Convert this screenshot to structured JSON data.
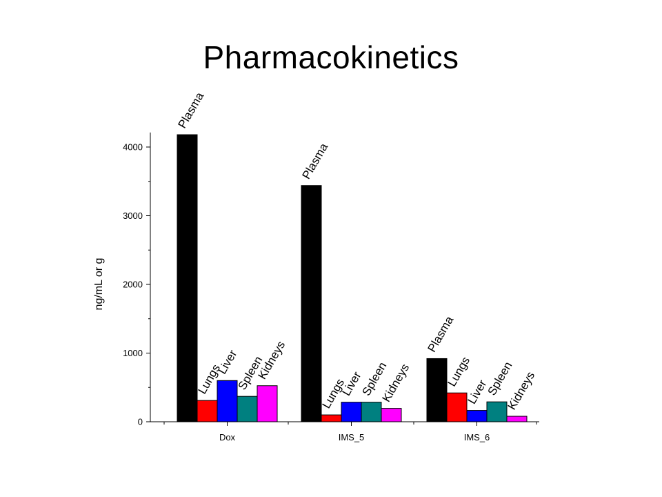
{
  "slide": {
    "title": "Pharmacokinetics"
  },
  "chart_data": {
    "type": "bar",
    "ylabel": "ng/mL or g",
    "xlabel": "",
    "ylim": [
      0,
      4200
    ],
    "yticks": [
      0,
      1000,
      2000,
      3000,
      4000
    ],
    "categories": [
      "Dox",
      "IMS_5",
      "IMS_6"
    ],
    "series": [
      {
        "name": "Plasma",
        "color": "#000000",
        "values": [
          4180,
          3440,
          920
        ]
      },
      {
        "name": "Lungs",
        "color": "#ff0000",
        "values": [
          310,
          100,
          420
        ]
      },
      {
        "name": "Liver",
        "color": "#0000ff",
        "values": [
          600,
          285,
          165
        ]
      },
      {
        "name": "Spleen",
        "color": "#008080",
        "values": [
          370,
          285,
          290
        ]
      },
      {
        "name": "Kidneys",
        "color": "#ff00ff",
        "values": [
          525,
          195,
          80
        ]
      }
    ]
  }
}
